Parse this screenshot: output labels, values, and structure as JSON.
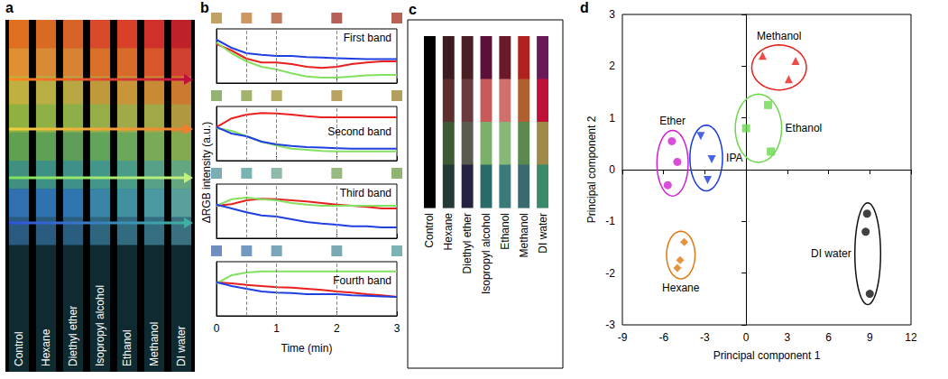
{
  "chart_data": [
    {
      "type": "strips",
      "title": "a",
      "categories": [
        "Control",
        "Hexane",
        "Diethyl ether",
        "Isopropyl alcohol",
        "Ethanol",
        "Methanol",
        "DI water"
      ],
      "cells": [
        [
          "#e07020",
          "#d86a24",
          "#d86228",
          "#d84a2a",
          "#d8402a",
          "#d0302a",
          "#c0202a"
        ],
        [
          "#e09030",
          "#d88a34",
          "#d88234",
          "#d8702a",
          "#d86a2a",
          "#d8562a",
          "#d04030"
        ],
        [
          "#c0b040",
          "#b8ae44",
          "#b8a844",
          "#c09a3a",
          "#c89638",
          "#c88a34",
          "#cc7a30"
        ],
        [
          "#90b040",
          "#8eb044",
          "#8eae48",
          "#96ae48",
          "#a0aa48",
          "#a0a848",
          "#b09840"
        ],
        [
          "#60a050",
          "#5ea054",
          "#5e9e58",
          "#62a45a",
          "#6ca85a",
          "#78aa58",
          "#84aa50"
        ],
        [
          "#409080",
          "#3e9084",
          "#3e9088",
          "#42968a",
          "#4a9c88",
          "#56a088",
          "#64a680"
        ],
        [
          "#3070b0",
          "#2f72b0",
          "#3074b0",
          "#3a84a8",
          "#4090a0",
          "#4a98a0",
          "#5aa09a"
        ],
        [
          "#2a5a80",
          "#2a5c80",
          "#2a5e80",
          "#2e6680",
          "#326a80",
          "#346e80",
          "#3a7080"
        ]
      ]
    },
    {
      "type": "line",
      "title": "b",
      "ylabel": "ΔRGB intensity (a.u.)",
      "annotation": "First band",
      "x": [
        0,
        0.25,
        0.5,
        0.75,
        1,
        1.25,
        1.5,
        1.75,
        2,
        2.25,
        2.5,
        2.75,
        3
      ],
      "xlim": [
        0,
        3
      ],
      "xticks": [
        0,
        1,
        2,
        3
      ],
      "ylim": [
        0,
        1
      ],
      "tick_labels": false,
      "vlines": [
        0.5,
        1,
        2
      ],
      "swatches": {
        "x": [
          0,
          0.5,
          1,
          2,
          3
        ],
        "colors": [
          "#b08a40",
          "#c0803a",
          "#b05a38",
          "#a03a30",
          "#a83a2a"
        ]
      },
      "series": [
        {
          "color": "#e8201e",
          "values": [
            0.72,
            0.6,
            0.45,
            0.38,
            0.38,
            0.35,
            0.3,
            0.28,
            0.3,
            0.35,
            0.38,
            0.4,
            0.4
          ]
        },
        {
          "color": "#84e060",
          "values": [
            0.75,
            0.55,
            0.4,
            0.3,
            0.25,
            0.18,
            0.12,
            0.1,
            0.1,
            0.12,
            0.14,
            0.15,
            0.15
          ]
        },
        {
          "color": "#1f3fe0",
          "values": [
            0.8,
            0.65,
            0.55,
            0.52,
            0.5,
            0.5,
            0.48,
            0.47,
            0.46,
            0.45,
            0.44,
            0.44,
            0.44
          ]
        }
      ]
    },
    {
      "type": "line",
      "annotation": "Second band",
      "x": [
        0,
        0.25,
        0.5,
        0.75,
        1,
        1.25,
        1.5,
        1.75,
        2,
        2.25,
        2.5,
        2.75,
        3
      ],
      "xlim": [
        0,
        3
      ],
      "xticks": [
        0,
        1,
        2,
        3
      ],
      "ylim": [
        0,
        1
      ],
      "tick_labels": false,
      "vlines": [
        0.5,
        1,
        2
      ],
      "swatches": {
        "x": [
          0,
          0.5,
          1,
          2,
          3
        ],
        "colors": [
          "#78a050",
          "#8aa048",
          "#a49a40",
          "#a88c3c",
          "#a08838"
        ]
      },
      "series": [
        {
          "color": "#e8201e",
          "values": [
            0.62,
            0.78,
            0.85,
            0.88,
            0.87,
            0.85,
            0.82,
            0.8,
            0.8,
            0.8,
            0.8,
            0.8,
            0.8
          ]
        },
        {
          "color": "#84e060",
          "values": [
            0.6,
            0.55,
            0.45,
            0.35,
            0.28,
            0.22,
            0.2,
            0.18,
            0.17,
            0.17,
            0.17,
            0.17,
            0.17
          ]
        },
        {
          "color": "#1f3fe0",
          "values": [
            0.62,
            0.5,
            0.45,
            0.35,
            0.3,
            0.27,
            0.25,
            0.24,
            0.23,
            0.22,
            0.22,
            0.22,
            0.22
          ]
        }
      ]
    },
    {
      "type": "line",
      "annotation": "Third band",
      "x": [
        0,
        0.25,
        0.5,
        0.75,
        1,
        1.25,
        1.5,
        1.75,
        2,
        2.25,
        2.5,
        2.75,
        3
      ],
      "xlim": [
        0,
        3
      ],
      "xticks": [
        0,
        1,
        2,
        3
      ],
      "ylim": [
        0,
        1
      ],
      "tick_labels": false,
      "vlines": [
        0.5,
        1,
        2
      ],
      "swatches": {
        "x": [
          0,
          0.5,
          1,
          2,
          3
        ],
        "colors": [
          "#5a9aa0",
          "#5aa0a0",
          "#70a890",
          "#80a860",
          "#78a050"
        ]
      },
      "series": [
        {
          "color": "#e8201e",
          "values": [
            0.6,
            0.63,
            0.7,
            0.73,
            0.72,
            0.7,
            0.68,
            0.65,
            0.62,
            0.6,
            0.58,
            0.55,
            0.55
          ]
        },
        {
          "color": "#84e060",
          "values": [
            0.6,
            0.72,
            0.75,
            0.72,
            0.7,
            0.65,
            0.62,
            0.6,
            0.6,
            0.6,
            0.6,
            0.6,
            0.6
          ]
        },
        {
          "color": "#1f3fe0",
          "values": [
            0.62,
            0.55,
            0.48,
            0.42,
            0.4,
            0.35,
            0.3,
            0.27,
            0.25,
            0.22,
            0.22,
            0.2,
            0.2
          ]
        }
      ]
    },
    {
      "type": "line",
      "annotation": "Fourth band",
      "xlabel": "Time (min)",
      "x": [
        0,
        0.25,
        0.5,
        0.75,
        1,
        1.25,
        1.5,
        1.75,
        2,
        2.25,
        2.5,
        2.75,
        3
      ],
      "xlim": [
        0,
        3
      ],
      "xticks": [
        0,
        1,
        2,
        3
      ],
      "ylim": [
        0,
        1
      ],
      "tick_labels": "x",
      "vlines": [
        0.5,
        1,
        2
      ],
      "swatches": {
        "x": [
          0,
          0.5,
          1,
          2,
          3
        ],
        "colors": [
          "#4a70b0",
          "#5080b0",
          "#5a8fa8",
          "#5a95a0",
          "#5aa0a0"
        ]
      },
      "series": [
        {
          "color": "#e8201e",
          "values": [
            0.62,
            0.6,
            0.57,
            0.55,
            0.53,
            0.52,
            0.5,
            0.48,
            0.45,
            0.43,
            0.4,
            0.38,
            0.35
          ]
        },
        {
          "color": "#84e060",
          "values": [
            0.6,
            0.75,
            0.8,
            0.82,
            0.82,
            0.82,
            0.82,
            0.82,
            0.82,
            0.82,
            0.82,
            0.82,
            0.82
          ]
        },
        {
          "color": "#1f3fe0",
          "values": [
            0.62,
            0.55,
            0.5,
            0.45,
            0.43,
            0.42,
            0.4,
            0.4,
            0.4,
            0.38,
            0.37,
            0.36,
            0.35
          ]
        }
      ]
    },
    {
      "type": "color_bars",
      "title": "c",
      "categories": [
        "Control",
        "Hexane",
        "Diethyl ether",
        "Isopropyl alcohol",
        "Ethanol",
        "Methanol",
        "DI water"
      ],
      "bands": [
        [
          "#000000",
          "#3c1c1e",
          "#4a1e24",
          "#5a1038",
          "#6a1a2a",
          "#b0221e",
          "#6a1a5a"
        ],
        [
          "#000000",
          "#5c2e2c",
          "#6a3a40",
          "#c85a5a",
          "#d0706a",
          "#b06030",
          "#c0103a"
        ],
        [
          "#000000",
          "#3e5a34",
          "#5a5a50",
          "#7ab06a",
          "#88b878",
          "#5a8a50",
          "#a08a4a"
        ],
        [
          "#000000",
          "#243a36",
          "#242240",
          "#2a6a6a",
          "#3a7a78",
          "#3a6a70",
          "#3a8a6a"
        ]
      ]
    },
    {
      "type": "scatter",
      "title": "d",
      "xlabel": "Principal component 1",
      "ylabel": "Principal component 2",
      "xlim": [
        -9,
        12
      ],
      "xticks": [
        -9,
        -6,
        -3,
        0,
        3,
        6,
        9,
        12
      ],
      "ylim": [
        -3,
        3
      ],
      "yticks": [
        -3,
        -2,
        -1,
        0,
        1,
        2,
        3
      ],
      "series": [
        {
          "name": "Methanol",
          "color": "#e8201a",
          "marker": "triangle",
          "x": [
            1.2,
            3.6,
            3.1
          ],
          "values": [
            2.2,
            2.1,
            1.75
          ]
        },
        {
          "name": "Ethanol",
          "color": "#6ad84a",
          "marker": "square",
          "x": [
            0,
            1.6,
            1.8
          ],
          "values": [
            0.8,
            1.25,
            0.35
          ]
        },
        {
          "name": "Ether",
          "color": "#d020d0",
          "marker": "circle",
          "x": [
            -5.4,
            -5,
            -5.7
          ],
          "values": [
            0.55,
            0.15,
            -0.3
          ]
        },
        {
          "name": "IPA",
          "color": "#1a3ae0",
          "marker": "triangle-down",
          "x": [
            -3.3,
            -2.5,
            -2.8
          ],
          "values": [
            0.65,
            0.2,
            -0.2
          ]
        },
        {
          "name": "Hexane",
          "color": "#e07810",
          "marker": "diamond",
          "x": [
            -4.5,
            -4.8,
            -5
          ],
          "values": [
            -1.4,
            -1.75,
            -1.9
          ]
        },
        {
          "name": "DI water",
          "color": "#111111",
          "marker": "circle",
          "x": [
            8.8,
            8.7,
            9
          ],
          "values": [
            -0.85,
            -1.2,
            -2.4
          ]
        }
      ]
    }
  ]
}
